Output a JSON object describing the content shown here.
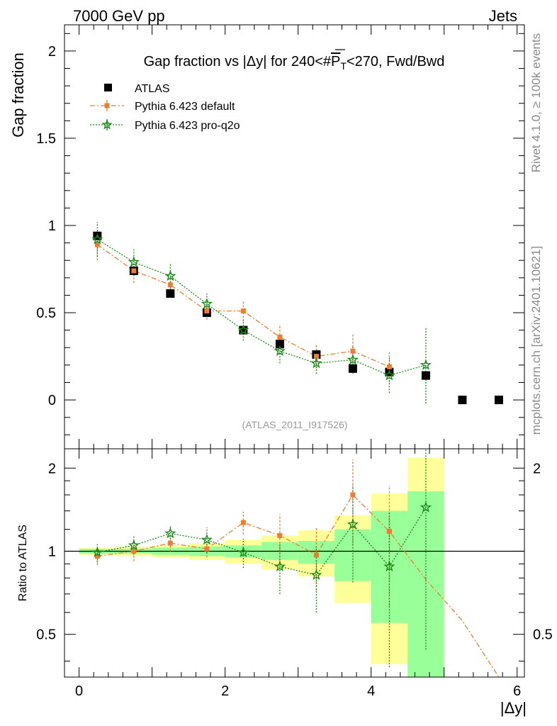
{
  "header": {
    "left": "7000 GeV pp",
    "right": "Jets"
  },
  "side_labels": {
    "top": "Rivet 4.1.0, ≥ 100k events",
    "bottom": "mcplots.cern.ch [arXiv:2401.10621]"
  },
  "watermark": "(ATLAS_2011_I917526)",
  "chart_data": [
    {
      "type": "scatter",
      "panel": "main",
      "title_parts": [
        "Gap fraction vs |Δy| for 240<#",
        "P",
        "T",
        "<270, Fwd/Bwd"
      ],
      "ylabel": "Gap fraction",
      "xlim": [
        -0.2,
        6.1
      ],
      "ylim": [
        -0.28,
        2.15
      ],
      "yticks": [
        0,
        0.5,
        1,
        1.5,
        2
      ],
      "ytick_labels": [
        "0",
        "0.5",
        "1",
        "1.5",
        "2"
      ],
      "legend": [
        {
          "name": "ATLAS",
          "marker": "square",
          "color": "#000000"
        },
        {
          "name": "Pythia 6.423 default",
          "marker": "square-small",
          "color": "#ee7d32"
        },
        {
          "name": "Pythia 6.423 pro-q2o",
          "marker": "star",
          "color": "#1a8a1a"
        }
      ],
      "series": [
        {
          "name": "ATLAS",
          "x": [
            0.25,
            0.75,
            1.25,
            1.75,
            2.25,
            2.75,
            3.25,
            3.75,
            4.25,
            4.75,
            5.25,
            5.75
          ],
          "y": [
            0.94,
            0.74,
            0.61,
            0.5,
            0.4,
            0.32,
            0.26,
            0.18,
            0.16,
            0.14,
            0.0,
            0.0
          ]
        },
        {
          "name": "Pythia 6.423 default",
          "x": [
            0.25,
            0.75,
            1.25,
            1.75,
            2.25,
            2.75,
            3.25,
            3.75,
            4.25
          ],
          "y": [
            0.89,
            0.74,
            0.66,
            0.51,
            0.51,
            0.36,
            0.25,
            0.28,
            0.19
          ],
          "err": [
            0.09,
            0.07,
            0.05,
            0.05,
            0.06,
            0.07,
            0.07,
            0.1,
            0.09
          ]
        },
        {
          "name": "Pythia 6.423 pro-q2o",
          "x": [
            0.25,
            0.75,
            1.25,
            1.75,
            2.25,
            2.75,
            3.25,
            3.75,
            4.25,
            4.75
          ],
          "y": [
            0.92,
            0.79,
            0.71,
            0.55,
            0.4,
            0.28,
            0.21,
            0.23,
            0.14,
            0.2
          ],
          "err": [
            0.1,
            0.08,
            0.07,
            0.06,
            0.06,
            0.07,
            0.06,
            0.08,
            0.1,
            0.22
          ]
        }
      ]
    },
    {
      "type": "scatter",
      "panel": "ratio",
      "ylabel": "Ratio to ATLAS",
      "xlabel": "|Δy|",
      "xlim": [
        -0.2,
        6.1
      ],
      "ylim": [
        0.35,
        2.35
      ],
      "ylog": true,
      "yticks": [
        0.5,
        1,
        2
      ],
      "ytick_labels": [
        "0.5",
        "1",
        "2"
      ],
      "xticks": [
        0,
        2,
        4,
        6
      ],
      "xtick_labels": [
        "0",
        "2",
        "4",
        "6"
      ],
      "bands": {
        "edges": [
          0,
          0.5,
          1,
          1.5,
          2,
          2.5,
          3,
          3.5,
          4,
          4.5,
          5
        ],
        "inner": [
          [
            0.98,
            1.02
          ],
          [
            0.98,
            1.02
          ],
          [
            0.97,
            1.03
          ],
          [
            0.96,
            1.04
          ],
          [
            0.95,
            1.05
          ],
          [
            0.93,
            1.08
          ],
          [
            0.9,
            1.09
          ],
          [
            0.78,
            1.2
          ],
          [
            0.55,
            1.4
          ],
          [
            0.35,
            1.65
          ]
        ],
        "outer": [
          [
            0.97,
            1.03
          ],
          [
            0.96,
            1.04
          ],
          [
            0.95,
            1.05
          ],
          [
            0.93,
            1.07
          ],
          [
            0.9,
            1.1
          ],
          [
            0.86,
            1.14
          ],
          [
            0.81,
            1.19
          ],
          [
            0.65,
            1.35
          ],
          [
            0.39,
            1.62
          ],
          [
            0.37,
            2.18
          ]
        ]
      },
      "series": [
        {
          "name": "Pythia 6.423 default",
          "x": [
            0.25,
            0.75,
            1.25,
            1.75,
            2.25,
            2.75,
            3.25,
            3.75,
            4.25,
            4.75,
            5.25,
            5.75
          ],
          "y": [
            0.96,
            1.0,
            1.07,
            1.02,
            1.27,
            1.14,
            0.97,
            1.6,
            1.18,
            0.79,
            0.56,
            0.35
          ],
          "err": [
            0.07,
            0.08,
            0.07,
            0.07,
            0.12,
            0.22,
            0.25,
            0.55,
            0.55,
            null,
            null,
            null
          ],
          "markers": 9
        },
        {
          "name": "Pythia 6.423 pro-q2o",
          "x": [
            0.25,
            0.75,
            1.25,
            1.75,
            2.25,
            2.75,
            3.25,
            3.75,
            4.25,
            4.75
          ],
          "y": [
            0.99,
            1.05,
            1.16,
            1.1,
            0.99,
            0.88,
            0.82,
            1.25,
            0.88,
            1.44
          ],
          "err": [
            0.08,
            0.08,
            0.08,
            0.12,
            0.12,
            0.18,
            0.22,
            0.48,
            0.5,
            1.0
          ]
        }
      ]
    }
  ]
}
